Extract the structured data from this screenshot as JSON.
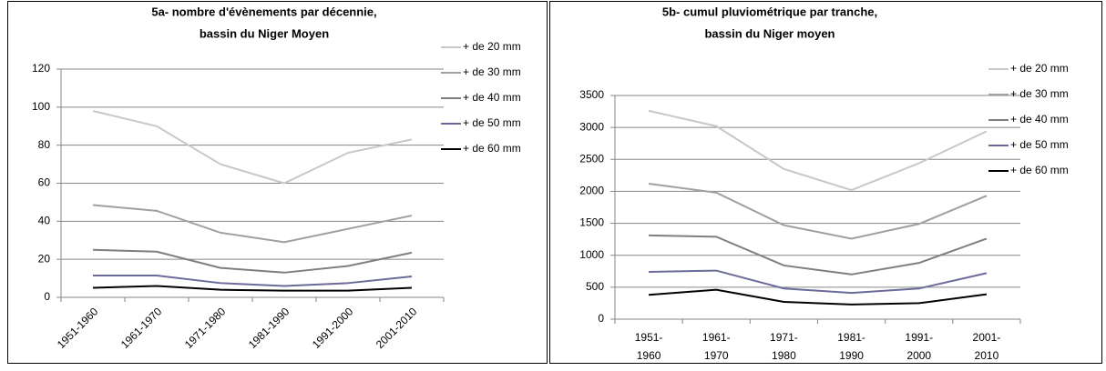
{
  "chart_data": [
    {
      "type": "line",
      "title": [
        "5a- nombre d'évènements par décennie,",
        "bassin du Niger Moyen"
      ],
      "categories": [
        "1951-1960",
        "1961-1970",
        "1971-1980",
        "1981-1990",
        "1991-2000",
        "2001-2010"
      ],
      "series": [
        {
          "name": "+ de 20 mm",
          "color": "#c8c8c8",
          "values": [
            98,
            90,
            70,
            60,
            76,
            83
          ]
        },
        {
          "name": "+ de 30 mm",
          "color": "#a0a0a0",
          "values": [
            48.5,
            45.5,
            34,
            29,
            36,
            43
          ]
        },
        {
          "name": "+ de 40 mm",
          "color": "#7f7f7f",
          "values": [
            25,
            24,
            15.5,
            13,
            16.5,
            23.5
          ]
        },
        {
          "name": "+ de 50 mm",
          "color": "#6b6b9b",
          "values": [
            11.5,
            11.5,
            7.5,
            6,
            7.5,
            11
          ]
        },
        {
          "name": "+ de 60 mm",
          "color": "#000000",
          "values": [
            5,
            6,
            4,
            3.5,
            3.5,
            5
          ]
        }
      ],
      "ylim": [
        0,
        120
      ],
      "yticks": [
        0,
        20,
        40,
        60,
        80,
        100,
        120
      ],
      "grid": true,
      "x_label_rotation": -45
    },
    {
      "type": "line",
      "title": [
        "5b- cumul pluviométrique par tranche,",
        "bassin du Niger moyen"
      ],
      "categories": [
        "1951-1960",
        "1961-1970",
        "1971-1980",
        "1981-1990",
        "1991-2000",
        "2001-2010"
      ],
      "series": [
        {
          "name": "+ de 20 mm",
          "color": "#c8c8c8",
          "values": [
            3260,
            3020,
            2350,
            2020,
            2440,
            2940
          ]
        },
        {
          "name": "+ de 30 mm",
          "color": "#a0a0a0",
          "values": [
            2120,
            1980,
            1470,
            1260,
            1490,
            1930
          ]
        },
        {
          "name": "+ de 40 mm",
          "color": "#7f7f7f",
          "values": [
            1310,
            1290,
            840,
            700,
            880,
            1260
          ]
        },
        {
          "name": "+ de 50 mm",
          "color": "#6b6b9b",
          "values": [
            740,
            760,
            480,
            410,
            480,
            720
          ]
        },
        {
          "name": "+ de 60 mm",
          "color": "#000000",
          "values": [
            380,
            460,
            270,
            230,
            250,
            390
          ]
        }
      ],
      "ylim": [
        0,
        3500
      ],
      "yticks": [
        0,
        500,
        1000,
        1500,
        2000,
        2500,
        3000,
        3500
      ],
      "grid": true,
      "x_label_rotation": 0
    }
  ]
}
